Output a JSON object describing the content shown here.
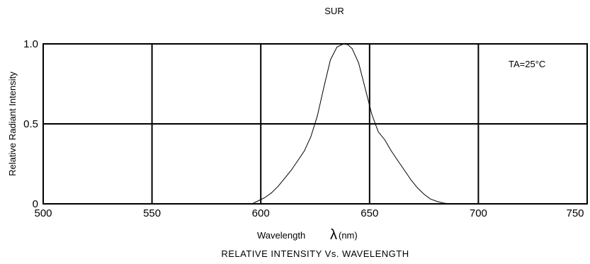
{
  "chart_data": {
    "type": "line",
    "title": "RELATIVE INTENSITY Vs. WAVELENGTH",
    "subtitle": "SUR",
    "xlabel": "Wavelength",
    "xlabel_symbol": "λ",
    "xlabel_unit": "(nm)",
    "ylabel": "Relative Radiant Intensity",
    "annotation": "TA=25°C",
    "xlim": [
      500,
      750
    ],
    "ylim": [
      0,
      1.0
    ],
    "x_ticks": [
      500,
      550,
      600,
      650,
      700,
      750
    ],
    "y_ticks": [
      0,
      0.5,
      1.0
    ],
    "x_tick_labels": [
      "500",
      "550",
      "600",
      "650",
      "700",
      "750"
    ],
    "y_tick_labels": [
      "0",
      "0.5",
      "1.0"
    ],
    "grid": true,
    "series": [
      {
        "x": [
          596,
          599,
          602,
          605,
          608,
          611,
          614,
          617,
          620,
          623,
          626,
          629,
          632,
          635,
          638,
          640,
          642,
          645,
          648,
          651,
          654,
          657,
          660,
          663,
          666,
          669,
          672,
          675,
          678,
          681,
          684,
          687
        ],
        "y": [
          0.0,
          0.02,
          0.04,
          0.07,
          0.11,
          0.16,
          0.21,
          0.27,
          0.33,
          0.42,
          0.55,
          0.73,
          0.9,
          0.98,
          1.0,
          0.995,
          0.97,
          0.88,
          0.72,
          0.56,
          0.45,
          0.4,
          0.33,
          0.27,
          0.21,
          0.15,
          0.1,
          0.06,
          0.03,
          0.015,
          0.005,
          0.0
        ]
      }
    ]
  }
}
